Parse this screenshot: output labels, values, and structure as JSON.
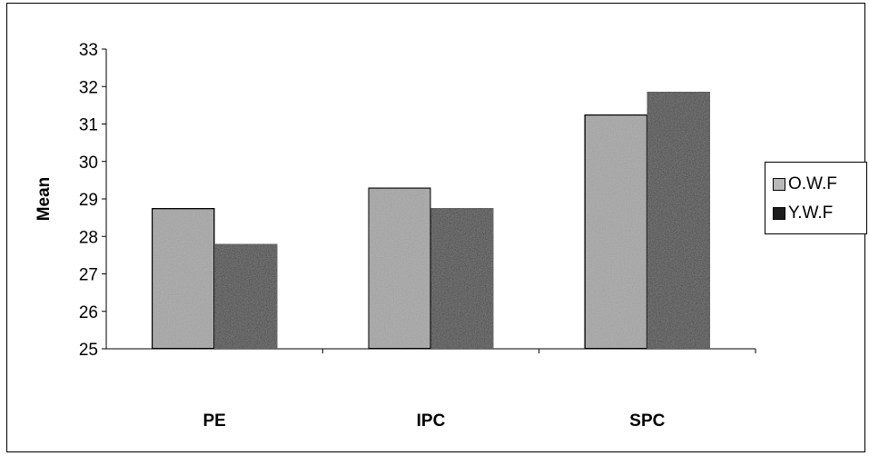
{
  "chart_data": {
    "type": "bar",
    "categories": [
      "PE",
      "IPC",
      "SPC"
    ],
    "series": [
      {
        "name": "O.W.F",
        "values": [
          28.75,
          29.3,
          31.25
        ],
        "color": "#b8b8b8"
      },
      {
        "name": "Y.W.F",
        "values": [
          27.8,
          28.75,
          31.85
        ],
        "color": "#1c1c1c"
      }
    ],
    "title": "",
    "xlabel": "",
    "ylabel": "Mean",
    "ylim": [
      25,
      33
    ],
    "yticks": [
      "25",
      "26",
      "27",
      "28",
      "29",
      "30",
      "31",
      "32",
      "33"
    ],
    "grid": false,
    "legend": "right"
  }
}
